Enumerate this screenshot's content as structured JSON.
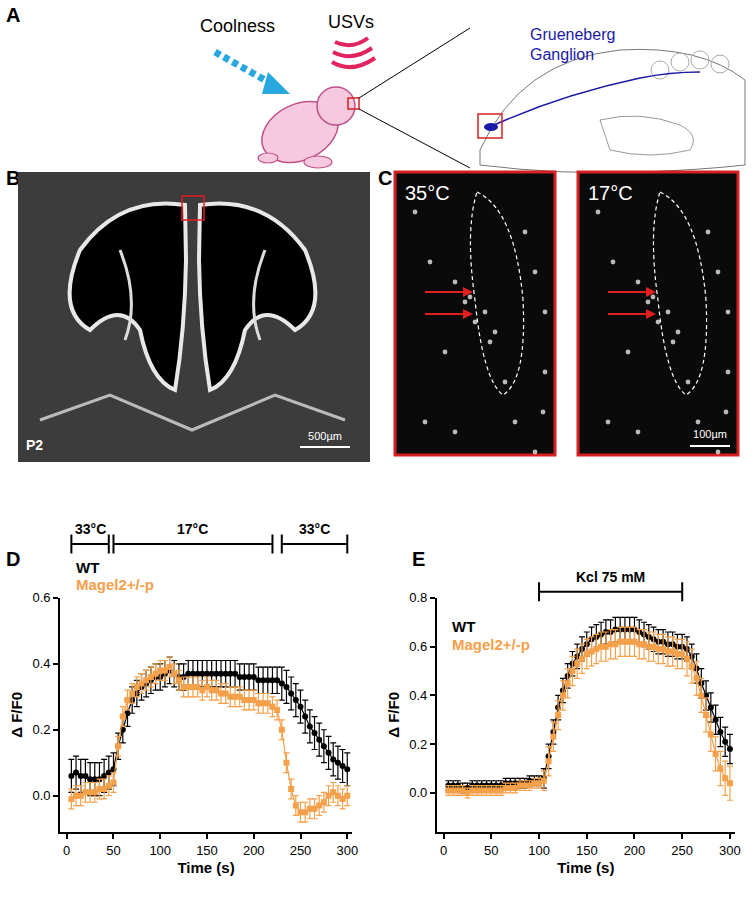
{
  "panels": {
    "A": {
      "label": "A",
      "stimulus": "Coolness",
      "response": "USVs",
      "organ": [
        "Grueneberg",
        "Ganglion"
      ]
    },
    "B": {
      "label": "B",
      "age": "P2",
      "scale_bar": "500µm"
    },
    "C": {
      "label": "C",
      "images": [
        "35°C",
        "17°C"
      ],
      "scale_bar": "100µm"
    }
  },
  "chart_data": [
    {
      "panel": "D",
      "type": "line",
      "x_label": "Time (s)",
      "y_label": "Δ F/F0",
      "grid": false,
      "xlim": [
        -7,
        305
      ],
      "xticks": [
        0,
        50,
        100,
        150,
        200,
        250,
        300
      ],
      "ylim": [
        -0.11,
        0.6
      ],
      "yticks": [
        {
          "value": 0,
          "label": "0.0"
        },
        0.2,
        0.4,
        0.6
      ],
      "stimuli": [
        {
          "label": "33°C",
          "start": 5,
          "end": 45
        },
        {
          "label": "17°C",
          "start": 50,
          "end": 220
        },
        {
          "label": "33°C",
          "start": 230,
          "end": 300
        }
      ],
      "x": [
        5,
        10,
        15,
        20,
        25,
        30,
        35,
        40,
        45,
        50,
        55,
        60,
        65,
        70,
        75,
        80,
        85,
        90,
        95,
        100,
        105,
        110,
        115,
        120,
        125,
        130,
        135,
        140,
        145,
        150,
        155,
        160,
        165,
        170,
        175,
        180,
        185,
        190,
        195,
        200,
        205,
        210,
        215,
        220,
        225,
        230,
        235,
        240,
        245,
        250,
        255,
        260,
        265,
        270,
        275,
        280,
        285,
        290,
        295,
        300
      ],
      "series": [
        {
          "name": "WT",
          "color": "#000000",
          "marker": "circle",
          "values": [
            0.06,
            0.07,
            0.06,
            0.06,
            0.05,
            0.05,
            0.05,
            0.06,
            0.07,
            0.08,
            0.15,
            0.2,
            0.25,
            0.29,
            0.31,
            0.33,
            0.34,
            0.35,
            0.36,
            0.36,
            0.37,
            0.38,
            0.37,
            0.36,
            0.36,
            0.37,
            0.37,
            0.37,
            0.37,
            0.37,
            0.37,
            0.37,
            0.37,
            0.37,
            0.37,
            0.37,
            0.36,
            0.36,
            0.36,
            0.36,
            0.35,
            0.35,
            0.35,
            0.35,
            0.35,
            0.34,
            0.33,
            0.31,
            0.29,
            0.27,
            0.24,
            0.21,
            0.19,
            0.17,
            0.15,
            0.13,
            0.11,
            0.1,
            0.09,
            0.08
          ],
          "errors": [
            0.05,
            0.05,
            0.05,
            0.05,
            0.05,
            0.05,
            0.05,
            0.05,
            0.05,
            0.05,
            0.04,
            0.04,
            0.04,
            0.04,
            0.04,
            0.04,
            0.04,
            0.04,
            0.04,
            0.04,
            0.04,
            0.04,
            0.04,
            0.04,
            0.04,
            0.04,
            0.04,
            0.04,
            0.04,
            0.04,
            0.04,
            0.04,
            0.04,
            0.04,
            0.04,
            0.04,
            0.04,
            0.04,
            0.04,
            0.04,
            0.04,
            0.04,
            0.04,
            0.04,
            0.04,
            0.05,
            0.05,
            0.05,
            0.05,
            0.05,
            0.05,
            0.05,
            0.05,
            0.05,
            0.05,
            0.05,
            0.05,
            0.05,
            0.05,
            0.05
          ]
        },
        {
          "name": "Magel2+/-p",
          "color": "#f5a04a",
          "marker": "square",
          "values": [
            -0.01,
            0.0,
            0.0,
            0.01,
            0.01,
            0.01,
            0.02,
            0.02,
            0.03,
            0.04,
            0.15,
            0.24,
            0.29,
            0.31,
            0.33,
            0.34,
            0.35,
            0.36,
            0.37,
            0.38,
            0.38,
            0.39,
            0.37,
            0.35,
            0.33,
            0.33,
            0.33,
            0.33,
            0.32,
            0.33,
            0.32,
            0.32,
            0.31,
            0.31,
            0.3,
            0.3,
            0.3,
            0.29,
            0.29,
            0.29,
            0.28,
            0.28,
            0.28,
            0.27,
            0.26,
            0.2,
            0.1,
            0.02,
            -0.03,
            -0.05,
            -0.05,
            -0.04,
            -0.04,
            -0.03,
            -0.02,
            0.0,
            0.01,
            0.0,
            -0.01,
            0.0
          ],
          "errors": [
            0.03,
            0.03,
            0.03,
            0.03,
            0.03,
            0.03,
            0.03,
            0.03,
            0.03,
            0.03,
            0.03,
            0.03,
            0.03,
            0.03,
            0.03,
            0.03,
            0.03,
            0.03,
            0.03,
            0.03,
            0.03,
            0.03,
            0.03,
            0.03,
            0.03,
            0.03,
            0.03,
            0.03,
            0.03,
            0.03,
            0.03,
            0.03,
            0.03,
            0.03,
            0.03,
            0.03,
            0.03,
            0.03,
            0.03,
            0.03,
            0.03,
            0.03,
            0.03,
            0.03,
            0.03,
            0.03,
            0.03,
            0.03,
            0.03,
            0.03,
            0.03,
            0.03,
            0.03,
            0.03,
            0.03,
            0.03,
            0.03,
            0.03,
            0.03,
            0.03
          ]
        }
      ]
    },
    {
      "panel": "E",
      "type": "line",
      "x_label": "Time (s)",
      "y_label": "Δ F/F0",
      "grid": false,
      "xlim": [
        -7,
        305
      ],
      "xticks": [
        0,
        50,
        100,
        150,
        200,
        250,
        300
      ],
      "ylim": [
        -0.16,
        0.8
      ],
      "yticks": [
        {
          "value": 0,
          "label": "0.0"
        },
        0.2,
        0.4,
        0.6,
        0.8
      ],
      "stimuli": [
        {
          "label": "Kcl 75 mM",
          "start": 100,
          "end": 250
        }
      ],
      "x": [
        5,
        10,
        15,
        20,
        25,
        30,
        35,
        40,
        45,
        50,
        55,
        60,
        65,
        70,
        75,
        80,
        85,
        90,
        95,
        100,
        105,
        110,
        115,
        120,
        125,
        130,
        135,
        140,
        145,
        150,
        155,
        160,
        165,
        170,
        175,
        180,
        185,
        190,
        195,
        200,
        205,
        210,
        215,
        220,
        225,
        230,
        235,
        240,
        245,
        250,
        255,
        260,
        265,
        270,
        275,
        280,
        285,
        290,
        295,
        300
      ],
      "series": [
        {
          "name": "WT",
          "color": "#000000",
          "marker": "circle",
          "values": [
            0.03,
            0.03,
            0.03,
            0.02,
            0.02,
            0.03,
            0.03,
            0.03,
            0.03,
            0.03,
            0.03,
            0.03,
            0.04,
            0.04,
            0.04,
            0.04,
            0.04,
            0.05,
            0.05,
            0.05,
            0.06,
            0.15,
            0.25,
            0.35,
            0.42,
            0.48,
            0.53,
            0.56,
            0.59,
            0.61,
            0.63,
            0.64,
            0.65,
            0.66,
            0.66,
            0.67,
            0.67,
            0.67,
            0.67,
            0.67,
            0.66,
            0.65,
            0.64,
            0.63,
            0.62,
            0.62,
            0.61,
            0.61,
            0.6,
            0.6,
            0.59,
            0.56,
            0.51,
            0.45,
            0.4,
            0.35,
            0.3,
            0.25,
            0.21,
            0.18
          ],
          "errors": [
            0.02,
            0.02,
            0.02,
            0.02,
            0.02,
            0.02,
            0.02,
            0.02,
            0.02,
            0.02,
            0.02,
            0.02,
            0.02,
            0.02,
            0.02,
            0.02,
            0.02,
            0.02,
            0.02,
            0.02,
            0.04,
            0.05,
            0.05,
            0.05,
            0.05,
            0.05,
            0.05,
            0.05,
            0.05,
            0.05,
            0.05,
            0.05,
            0.05,
            0.05,
            0.05,
            0.05,
            0.05,
            0.05,
            0.05,
            0.05,
            0.05,
            0.05,
            0.05,
            0.05,
            0.05,
            0.05,
            0.05,
            0.05,
            0.05,
            0.05,
            0.05,
            0.05,
            0.06,
            0.06,
            0.06,
            0.06,
            0.06,
            0.06,
            0.06,
            0.06
          ]
        },
        {
          "name": "Magel2+/-p",
          "color": "#f5a04a",
          "marker": "square",
          "values": [
            0.01,
            0.01,
            0.01,
            0.01,
            0.0,
            0.01,
            0.01,
            0.01,
            0.01,
            0.01,
            0.01,
            0.01,
            0.02,
            0.02,
            0.02,
            0.03,
            0.03,
            0.03,
            0.04,
            0.04,
            0.05,
            0.13,
            0.23,
            0.32,
            0.4,
            0.45,
            0.5,
            0.53,
            0.55,
            0.57,
            0.58,
            0.59,
            0.6,
            0.6,
            0.61,
            0.61,
            0.62,
            0.62,
            0.62,
            0.62,
            0.61,
            0.61,
            0.6,
            0.6,
            0.59,
            0.59,
            0.58,
            0.58,
            0.57,
            0.57,
            0.55,
            0.52,
            0.47,
            0.4,
            0.32,
            0.24,
            0.16,
            0.1,
            0.06,
            0.04
          ],
          "errors": [
            0.02,
            0.02,
            0.02,
            0.02,
            0.02,
            0.02,
            0.02,
            0.02,
            0.02,
            0.02,
            0.02,
            0.02,
            0.02,
            0.02,
            0.02,
            0.02,
            0.02,
            0.02,
            0.02,
            0.02,
            0.04,
            0.06,
            0.06,
            0.06,
            0.06,
            0.06,
            0.06,
            0.06,
            0.06,
            0.06,
            0.06,
            0.06,
            0.06,
            0.06,
            0.06,
            0.06,
            0.06,
            0.06,
            0.06,
            0.06,
            0.06,
            0.06,
            0.06,
            0.06,
            0.06,
            0.06,
            0.06,
            0.06,
            0.06,
            0.06,
            0.07,
            0.07,
            0.07,
            0.07,
            0.07,
            0.07,
            0.07,
            0.07,
            0.07,
            0.07
          ]
        }
      ]
    }
  ]
}
